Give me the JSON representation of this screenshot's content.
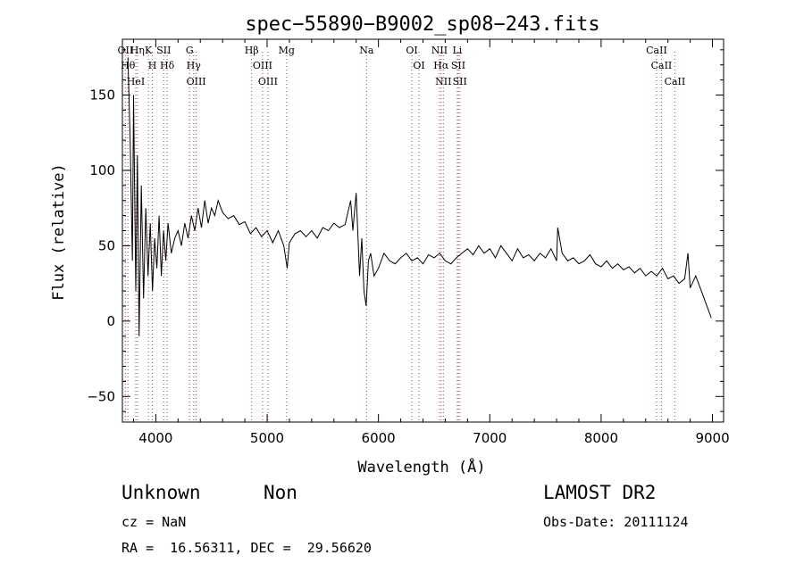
{
  "chart_data": {
    "type": "line",
    "title": "spec−55890−B9002_sp08−243.fits",
    "xlabel": "Wavelength (Å)",
    "ylabel": "Flux (relative)",
    "xlim": [
      3700,
      9100
    ],
    "ylim": [
      -67,
      187
    ],
    "x_ticks": [
      4000,
      5000,
      6000,
      7000,
      8000,
      9000
    ],
    "y_ticks": [
      -50,
      0,
      50,
      100,
      150
    ],
    "x_tick_labels": [
      "4000",
      "5000",
      "6000",
      "7000",
      "8000",
      "9000"
    ],
    "y_tick_labels": [
      "−50",
      "0",
      "50",
      "100",
      "150"
    ],
    "grid": false,
    "legend": "none",
    "series": [
      {
        "x": [
          3750,
          3770,
          3790,
          3800,
          3820,
          3835,
          3850,
          3870,
          3890,
          3910,
          3930,
          3950,
          3970,
          3990,
          4010,
          4030,
          4050,
          4070,
          4090,
          4110,
          4140,
          4170,
          4200,
          4230,
          4260,
          4290,
          4320,
          4350,
          4380,
          4410,
          4440,
          4470,
          4500,
          4530,
          4560,
          4600,
          4650,
          4700,
          4750,
          4800,
          4850,
          4900,
          4950,
          5000,
          5050,
          5100,
          5150,
          5180,
          5200,
          5250,
          5300,
          5350,
          5400,
          5450,
          5500,
          5550,
          5600,
          5650,
          5700,
          5750,
          5770,
          5800,
          5830,
          5850,
          5870,
          5890,
          5910,
          5930,
          5960,
          6000,
          6050,
          6100,
          6150,
          6200,
          6250,
          6300,
          6350,
          6400,
          6450,
          6500,
          6550,
          6600,
          6650,
          6700,
          6750,
          6800,
          6850,
          6900,
          6950,
          7000,
          7050,
          7100,
          7150,
          7200,
          7250,
          7300,
          7350,
          7400,
          7450,
          7500,
          7550,
          7600,
          7610,
          7650,
          7700,
          7750,
          7800,
          7850,
          7900,
          7950,
          8000,
          8050,
          8100,
          8150,
          8200,
          8250,
          8300,
          8350,
          8400,
          8450,
          8500,
          8550,
          8600,
          8650,
          8700,
          8750,
          8780,
          8800,
          8850,
          8900,
          8950,
          8990
        ],
        "y": [
          175,
          120,
          40,
          150,
          20,
          110,
          -10,
          90,
          15,
          75,
          30,
          65,
          20,
          55,
          35,
          70,
          30,
          60,
          40,
          65,
          45,
          55,
          60,
          50,
          65,
          55,
          70,
          60,
          75,
          62,
          80,
          65,
          75,
          70,
          80,
          72,
          68,
          70,
          64,
          66,
          58,
          62,
          56,
          60,
          52,
          60,
          50,
          35,
          52,
          58,
          60,
          56,
          60,
          55,
          62,
          60,
          65,
          62,
          64,
          80,
          60,
          85,
          30,
          55,
          20,
          10,
          40,
          45,
          30,
          35,
          45,
          40,
          38,
          42,
          45,
          40,
          42,
          38,
          44,
          42,
          45,
          40,
          38,
          42,
          45,
          48,
          44,
          50,
          45,
          48,
          42,
          50,
          45,
          40,
          48,
          42,
          44,
          40,
          45,
          42,
          48,
          40,
          62,
          45,
          40,
          42,
          38,
          40,
          44,
          38,
          36,
          40,
          35,
          38,
          34,
          36,
          32,
          35,
          30,
          33,
          30,
          35,
          28,
          30,
          25,
          28,
          45,
          22,
          30,
          20,
          10,
          2
        ]
      }
    ],
    "lines": [
      {
        "x": 3727,
        "label": "OII"
      },
      {
        "x": 3750,
        "label": "Hθ"
      },
      {
        "x": 3820,
        "label": "HeI"
      },
      {
        "x": 3835,
        "label": "Hη"
      },
      {
        "x": 3934,
        "label": "K"
      },
      {
        "x": 3969,
        "label": "H"
      },
      {
        "x": 4072,
        "label": "SII"
      },
      {
        "x": 4102,
        "label": "Hδ"
      },
      {
        "x": 4304,
        "label": "G"
      },
      {
        "x": 4340,
        "label": "Hγ"
      },
      {
        "x": 4363,
        "label": "OIII"
      },
      {
        "x": 4861,
        "label": "Hβ"
      },
      {
        "x": 4959,
        "label": "OIII"
      },
      {
        "x": 5007,
        "label": "OIII"
      },
      {
        "x": 5175,
        "label": "Mg"
      },
      {
        "x": 5893,
        "label": "Na"
      },
      {
        "x": 6300,
        "label": "OI"
      },
      {
        "x": 6364,
        "label": "OI"
      },
      {
        "x": 6548,
        "label": "NII"
      },
      {
        "x": 6563,
        "label": "Hα"
      },
      {
        "x": 6583,
        "label": "NII"
      },
      {
        "x": 6708,
        "label": "Li"
      },
      {
        "x": 6717,
        "label": "SII"
      },
      {
        "x": 6731,
        "label": "SII"
      },
      {
        "x": 8498,
        "label": "CaII"
      },
      {
        "x": 8542,
        "label": "CaII"
      },
      {
        "x": 8662,
        "label": "CaII"
      }
    ]
  },
  "info": {
    "class": "Unknown",
    "subclass": "Non",
    "survey": "LAMOST DR2",
    "cz": "cz = NaN",
    "obs_date": "Obs-Date: 20111124",
    "radec": "RA =  16.56311, DEC =  29.56620"
  }
}
